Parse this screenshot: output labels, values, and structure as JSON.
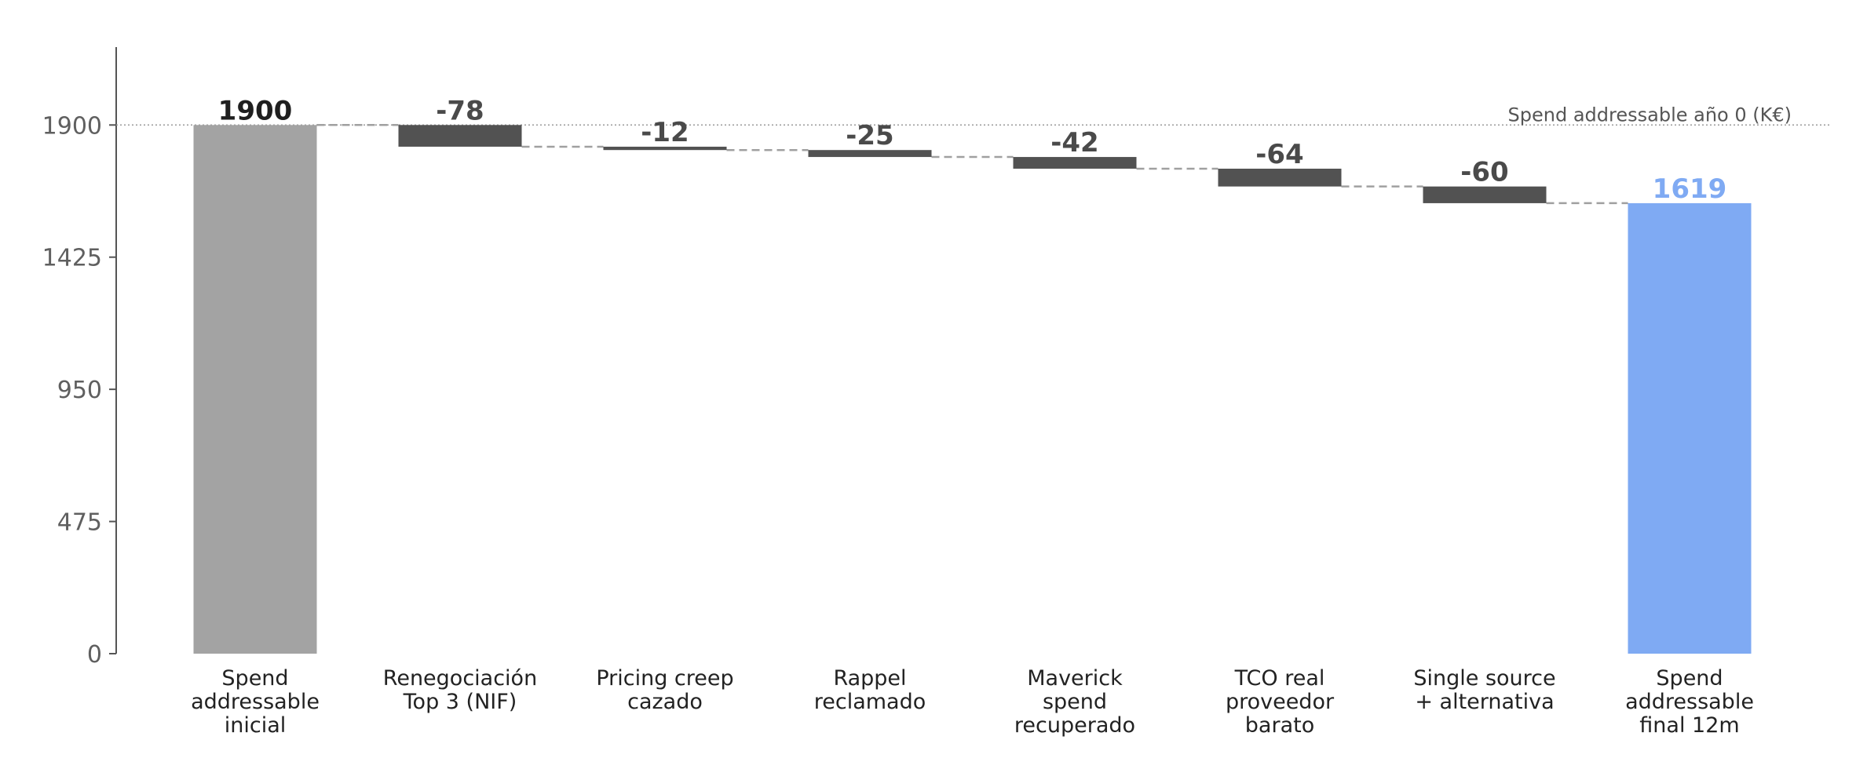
{
  "chart_data": {
    "type": "waterfall",
    "categories": [
      [
        "Spend",
        "addressable",
        "inicial"
      ],
      [
        "Renegociación",
        "Top 3 (NIF)"
      ],
      [
        "Pricing creep",
        "cazado"
      ],
      [
        "Rappel",
        "reclamado"
      ],
      [
        "Maverick",
        "spend",
        "recuperado"
      ],
      [
        "TCO real",
        "proveedor",
        "barato"
      ],
      [
        "Single source",
        "+ alternativa"
      ],
      [
        "Spend",
        "addressable",
        "final 12m"
      ]
    ],
    "values": [
      1900,
      -78,
      -12,
      -25,
      -42,
      -64,
      -60,
      1619
    ],
    "value_labels": [
      "1900",
      "-78",
      "-12",
      "-25",
      "-42",
      "-64",
      "-60",
      "1619"
    ],
    "kinds": [
      "total",
      "delta",
      "delta",
      "delta",
      "delta",
      "delta",
      "delta",
      "total"
    ],
    "yticks": [
      0,
      475,
      950,
      1425,
      1900
    ],
    "ylim": [
      0,
      2180
    ],
    "reference_line": {
      "value": 1900,
      "label": "Spend addressable año 0 (K€)"
    },
    "colors": {
      "start_total": "#a3a3a3",
      "delta": "#525252",
      "end_total": "#7faaf3",
      "start_label": "#1f1f1f",
      "delta_label": "#4a4a4a",
      "end_label": "#7faaf3",
      "connector": "#a0a0a0",
      "axis": "#555555"
    },
    "grid": false
  }
}
